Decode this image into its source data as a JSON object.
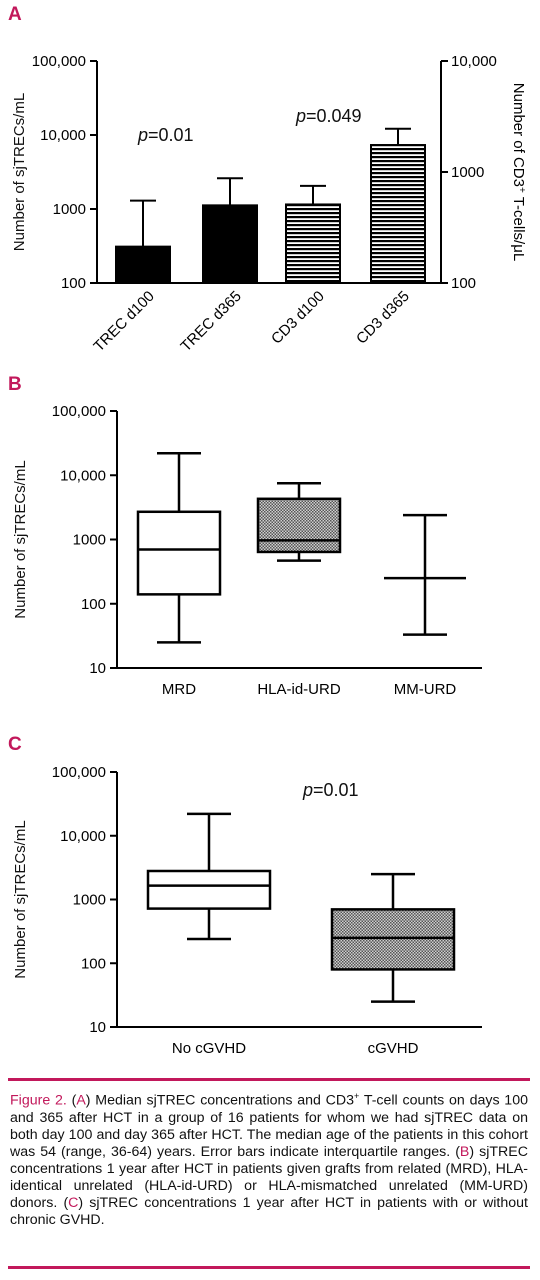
{
  "colors": {
    "accent": "#c2185b",
    "bar_black": "#000000",
    "box_hatch_dark": "#777777"
  },
  "panels": {
    "A": {
      "letter": "A",
      "chart_data": {
        "type": "bar",
        "scale": "log",
        "ylabel": "Number of sjTRECs/mL",
        "y2label_prefix": "Number of CD3",
        "y2label_sup": "+",
        "y2label_suffix": " T-cells/μL",
        "ylim": [
          100,
          100000
        ],
        "y2lim": [
          100,
          10000
        ],
        "yticks": [
          "100,000",
          "10,000",
          "1000",
          "100"
        ],
        "y2ticks": [
          "10,000",
          "1000",
          "100"
        ],
        "categories": [
          "TREC d100",
          "TREC d365",
          "CD3 d100",
          "CD3 d365"
        ],
        "axis": [
          "left",
          "left",
          "right",
          "right"
        ],
        "fill": [
          "solid",
          "solid",
          "striped",
          "striped"
        ],
        "values": [
          310,
          1120,
          510,
          1750
        ],
        "error_upper": [
          1300,
          2600,
          750,
          2450
        ],
        "annotations": [
          {
            "text_italic": "p",
            "text": "=0.01"
          },
          {
            "text_italic": "p",
            "text": "=0.049"
          }
        ]
      }
    },
    "B": {
      "letter": "B",
      "chart_data": {
        "type": "box",
        "scale": "log",
        "ylabel": "Number of sjTRECs/mL",
        "ylim": [
          10,
          100000
        ],
        "yticks": [
          "100,000",
          "10,000",
          "1000",
          "100",
          "10"
        ],
        "categories": [
          "MRD",
          "HLA-id-URD",
          "MM-URD"
        ],
        "fill": [
          "white",
          "hatched",
          "white"
        ],
        "whisker_low": [
          25,
          470,
          33
        ],
        "q1": [
          140,
          640,
          250
        ],
        "median": [
          700,
          970,
          250
        ],
        "q3": [
          2700,
          4300,
          250
        ],
        "whisker_high": [
          22000,
          7500,
          2400
        ]
      }
    },
    "C": {
      "letter": "C",
      "chart_data": {
        "type": "box",
        "scale": "log",
        "ylabel": "Number of sjTRECs/mL",
        "ylim": [
          10,
          100000
        ],
        "yticks": [
          "100,000",
          "10,000",
          "1000",
          "100",
          "10"
        ],
        "categories": [
          "No cGVHD",
          "cGVHD"
        ],
        "fill": [
          "white",
          "hatched"
        ],
        "whisker_low": [
          240,
          25
        ],
        "q1": [
          720,
          80
        ],
        "median": [
          1650,
          250
        ],
        "q3": [
          2800,
          700
        ],
        "whisker_high": [
          22000,
          2500
        ],
        "annotations": [
          {
            "text_italic": "p",
            "text": "=0.01"
          }
        ]
      }
    }
  },
  "caption": {
    "fig_label": "Figure 2.",
    "text_1": " (",
    "A": "A",
    "text_2": ") Median sjTREC concentrations and CD3",
    "sup": "+",
    "text_3": " T-cell counts on days 100 and 365 after HCT in a group of 16 patients for whom we had sjTREC data on both day 100 and day 365 after HCT. The median age of the patients in this cohort was 54 (range, 36-64) years. Error bars indicate interquartile ranges. (",
    "B": "B",
    "text_4": ") sjTREC concentrations 1 year after HCT in patients given grafts from related (MRD), HLA-identical unrelated (HLA-id-URD) or HLA-mismatched unrelated (MM-URD) donors. (",
    "C": "C",
    "text_5": ") sjTREC concentrations 1 year after HCT in patients with or without chronic GVHD."
  }
}
